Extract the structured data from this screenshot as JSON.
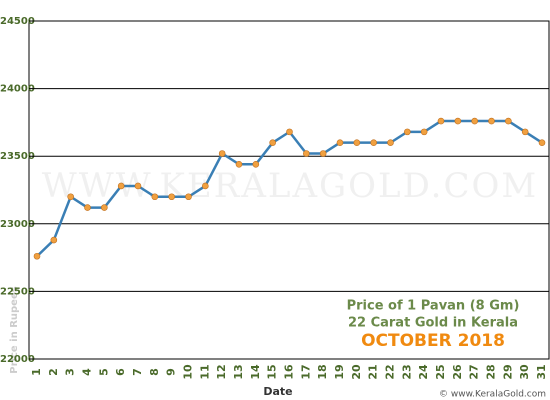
{
  "chart_data": {
    "type": "line",
    "title": "Price of 1 Pavan (8 Gm)",
    "subtitle": "22 Carat Gold in Kerala",
    "period": "OCTOBER 2018",
    "x_label": "Date",
    "y_label": "Price in Rupees",
    "watermark": "WWW.KERALAGOLD.COM",
    "credit": "© www.KeralaGold.com",
    "categories": [
      "1",
      "2",
      "3",
      "4",
      "5",
      "6",
      "7",
      "8",
      "9",
      "10",
      "11",
      "12",
      "13",
      "14",
      "15",
      "16",
      "17",
      "18",
      "19",
      "20",
      "21",
      "22",
      "23",
      "24",
      "25",
      "26",
      "27",
      "28",
      "29",
      "30",
      "31"
    ],
    "series": [
      {
        "name": "Price",
        "color": "#3a7fb5",
        "marker_color": "#f0a040",
        "values": [
          22760,
          22880,
          23200,
          23120,
          23120,
          23280,
          23280,
          23200,
          23200,
          23200,
          23280,
          23520,
          23440,
          23440,
          23600,
          23680,
          23520,
          23520,
          23600,
          23600,
          23600,
          23600,
          23680,
          23680,
          23760,
          23760,
          23760,
          23760,
          23760,
          23680,
          23600
        ]
      }
    ],
    "ylim": [
      22000,
      24500
    ],
    "yticks": [
      22000,
      22500,
      23000,
      23500,
      24000,
      24500
    ],
    "grid": true
  }
}
